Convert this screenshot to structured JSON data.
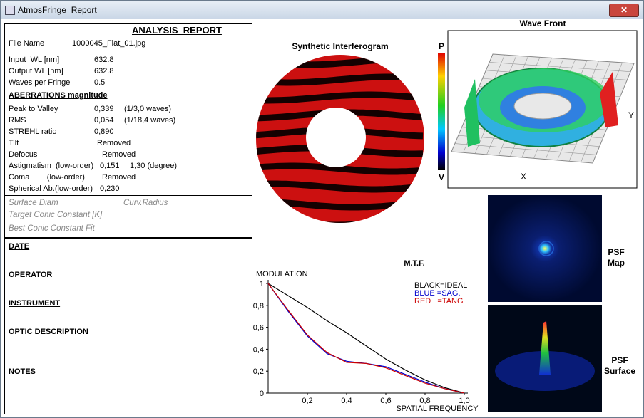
{
  "window_title": "AtmosFringe  Report",
  "report": {
    "title": "ANALYSIS  REPORT",
    "rows": [
      {
        "label": "File Name",
        "value": "1000045_Flat_01.jpg"
      },
      {
        "label": "Input  WL [nm]",
        "value": "632.8"
      },
      {
        "label": "Output WL [nm]",
        "value": "632.8"
      },
      {
        "label": "Waves per Fringe",
        "value": "0.5"
      },
      {
        "label": "ABERRATIONS magnitude"
      },
      {
        "label": "Peak to Valley",
        "value": "0,339",
        "note": "(1/3,0 waves)"
      },
      {
        "label": "RMS",
        "value": "0,054",
        "note": "(1/18,4 waves)"
      },
      {
        "label": "STREHL ratio",
        "value": "0,890"
      },
      {
        "label": "Tilt",
        "value": "Removed"
      },
      {
        "label": "Defocus",
        "value": "Removed"
      },
      {
        "label": "Astigmatism  (low-order)",
        "value": "0,151",
        "note": "1,30 (degree)"
      },
      {
        "label": "Coma        (low-order)",
        "value": "Removed"
      },
      {
        "label": "Spherical Ab.(low-order)",
        "value": "0,230"
      }
    ],
    "surface": [
      "Surface Diam",
      "Curv.Radius",
      "Target Conic Constant [K]",
      "Best Conic Constant Fit"
    ],
    "sections": [
      "DATE",
      "OPERATOR",
      "INSTRUMENT",
      "OPTIC DESCRIPTION",
      "NOTES"
    ]
  },
  "panels": {
    "interferogram": "Synthetic Interferogram",
    "wavefront": "Wave Front",
    "scale_top": "P",
    "scale_bottom": "V",
    "axis_x": "X",
    "axis_y": "Y",
    "psf_map": [
      "PSF",
      "Map"
    ],
    "psf_surface": [
      "PSF",
      "Surface"
    ]
  },
  "chart_data": {
    "type": "line",
    "title": "M.T.F.",
    "y_label": "MODULATION",
    "x_label": "SPATIAL FREQUENCY",
    "x": [
      0,
      0.1,
      0.2,
      0.3,
      0.4,
      0.5,
      0.6,
      0.7,
      0.8,
      0.9,
      1.0
    ],
    "series": [
      {
        "name": "BLACK=IDEAL",
        "color": "#000000",
        "values": [
          1,
          0.89,
          0.78,
          0.66,
          0.55,
          0.43,
          0.31,
          0.21,
          0.12,
          0.05,
          0
        ]
      },
      {
        "name": "BLUE =SAG.",
        "color": "#0000cc",
        "values": [
          1,
          0.75,
          0.52,
          0.36,
          0.29,
          0.27,
          0.24,
          0.17,
          0.1,
          0.04,
          0
        ]
      },
      {
        "name": "RED   =TANG",
        "color": "#cc0000",
        "values": [
          1,
          0.76,
          0.53,
          0.37,
          0.28,
          0.27,
          0.23,
          0.16,
          0.09,
          0.04,
          0
        ]
      }
    ],
    "xlim": [
      0,
      1
    ],
    "ylim": [
      0,
      1
    ],
    "xticks": [
      {
        "value": 0.2,
        "label": "0,2"
      },
      {
        "value": 0.4,
        "label": "0,4"
      },
      {
        "value": 0.6,
        "label": "0,6"
      },
      {
        "value": 0.8,
        "label": "0,8"
      },
      {
        "value": 1.0,
        "label": "1,0"
      }
    ],
    "yticks": [
      0,
      {
        "value": 0.2,
        "label": "0,2"
      },
      {
        "value": 0.4,
        "label": "0,4"
      },
      {
        "value": 0.6,
        "label": "0,6"
      },
      {
        "value": 0.8,
        "label": "0,8"
      },
      1
    ]
  }
}
